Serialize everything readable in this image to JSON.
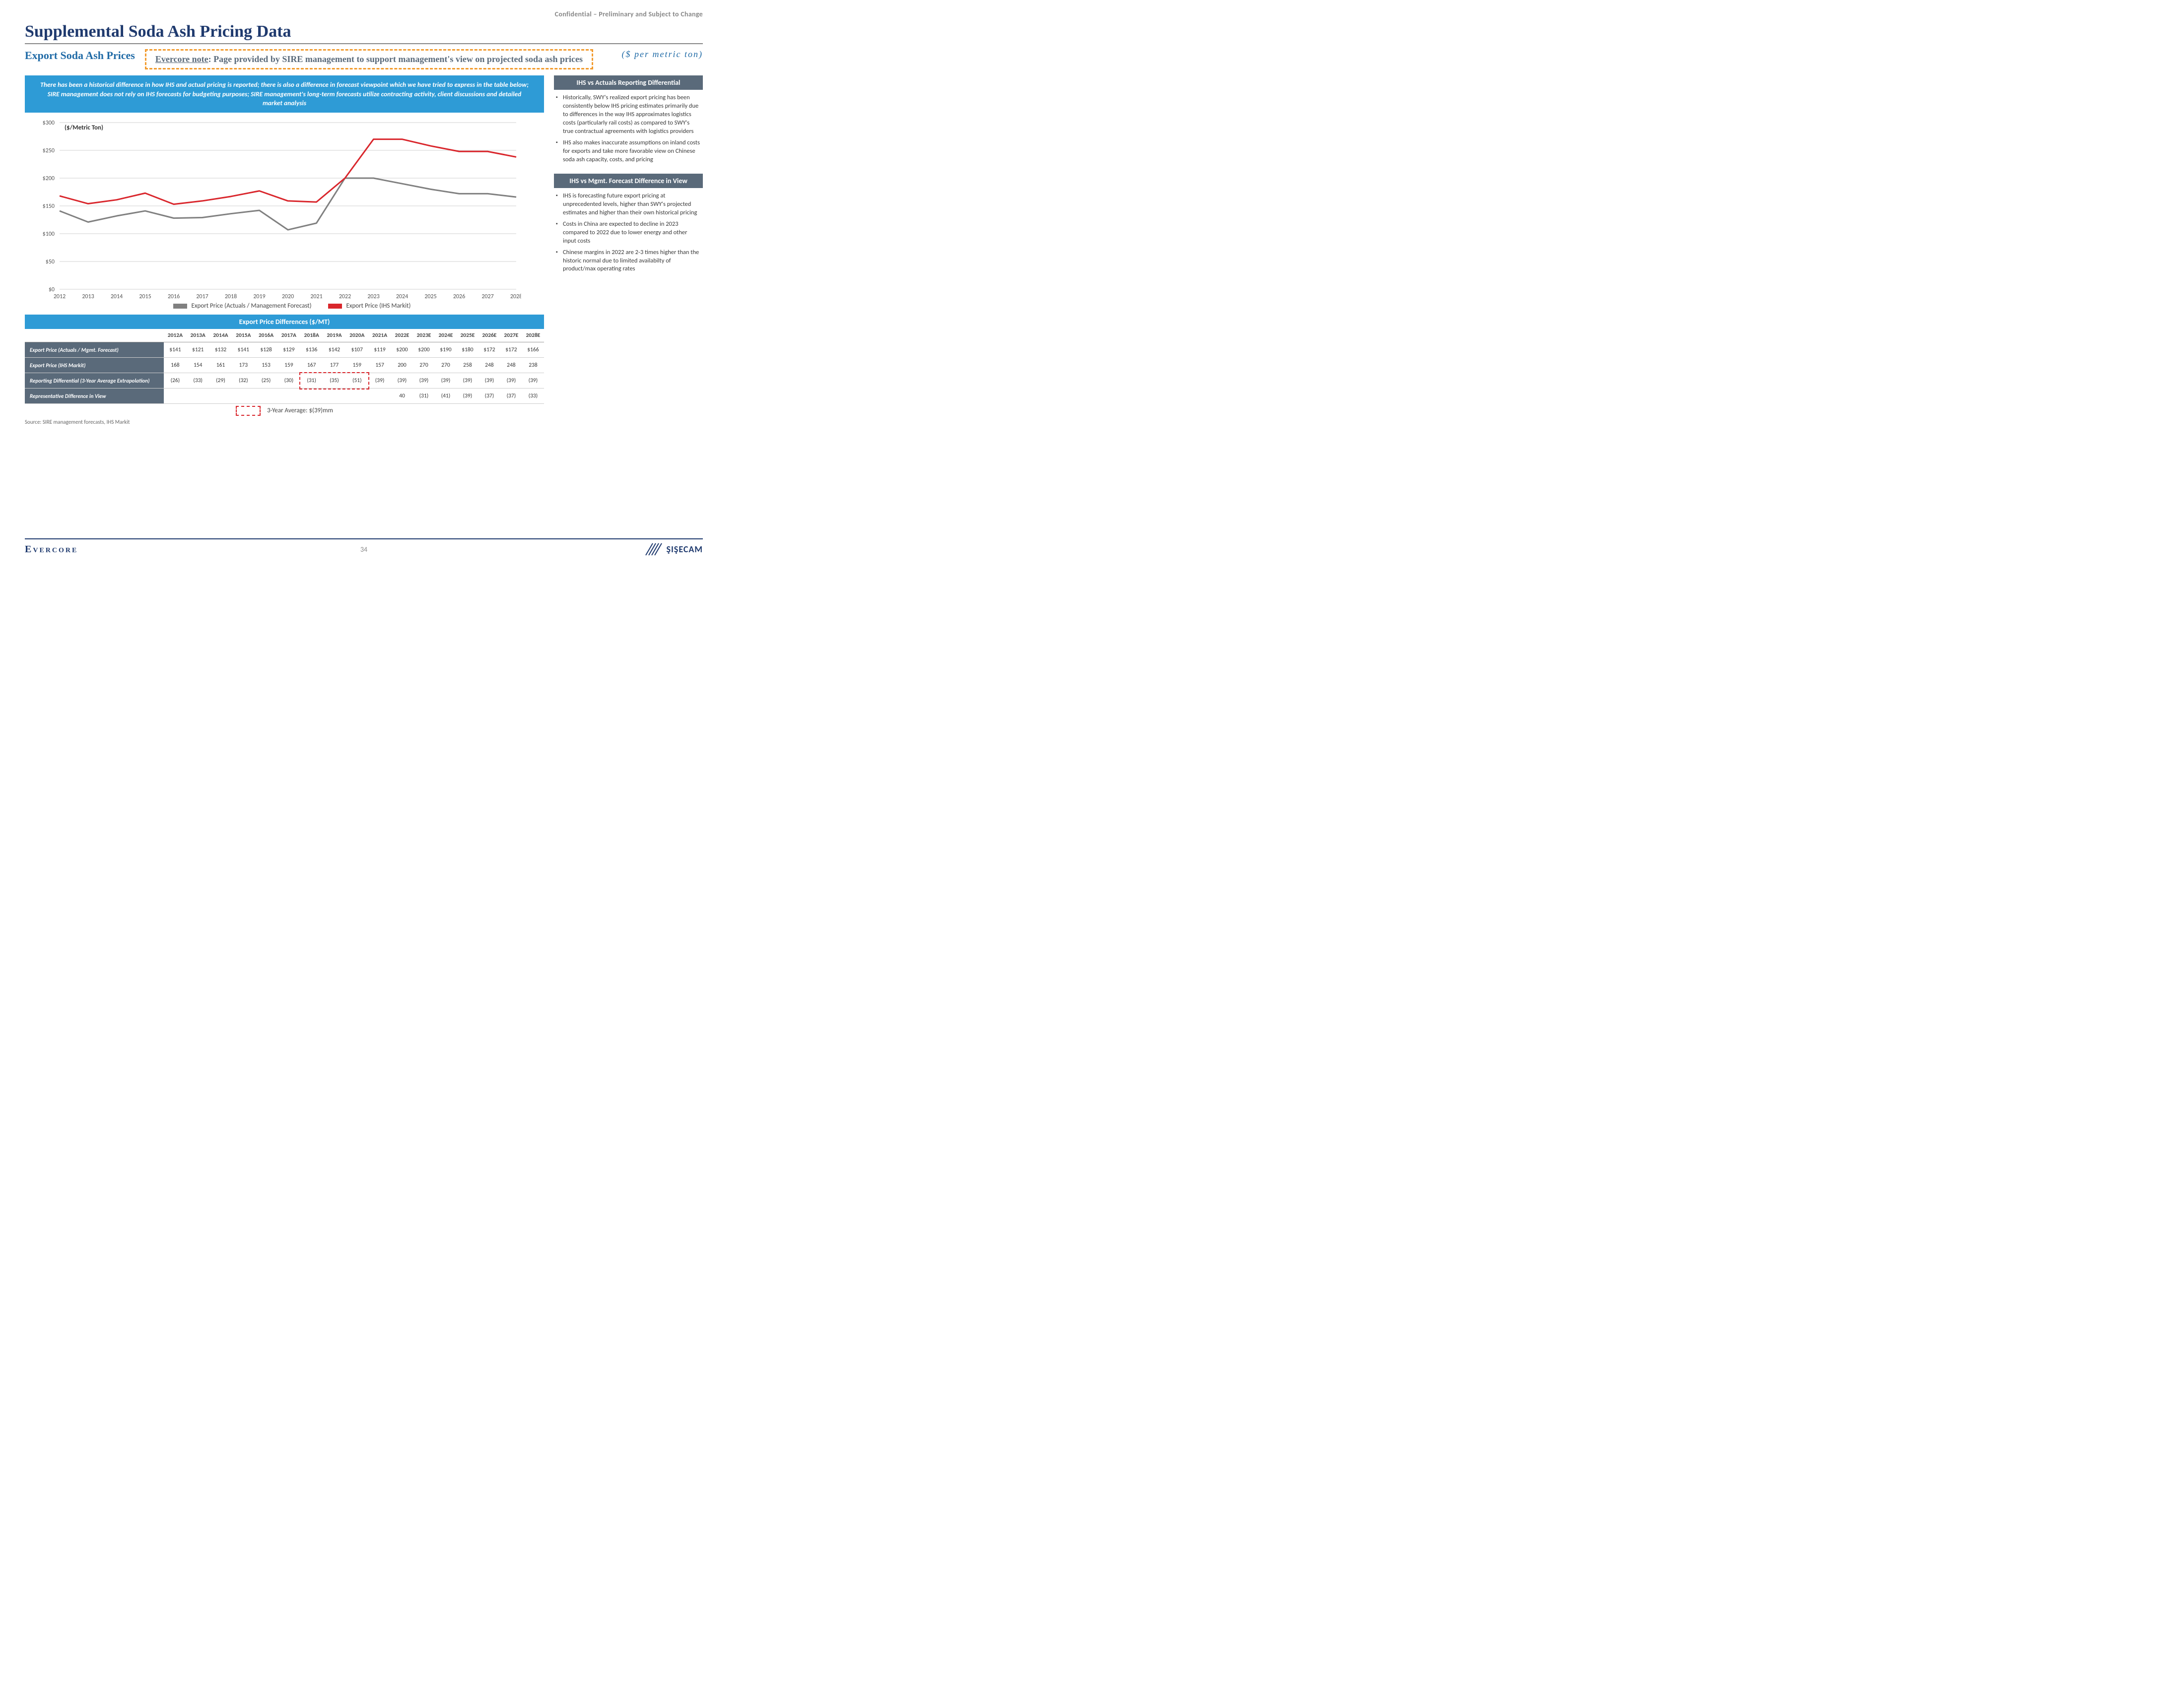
{
  "header": {
    "confidential": "Confidential – Preliminary and Subject to Change",
    "title": "Supplemental Soda Ash Pricing Data",
    "subtitle": "Export Soda Ash Prices",
    "note_lead": "Evercore note",
    "note_rest": ": Page provided by SIRE management to support management's view on projected soda ash prices",
    "unit": "($ per metric ton)"
  },
  "banner": "There has been a historical difference in how IHS and actual pricing is reported; there is also a difference in forecast viewpoint which we have tried to express in the table below; SIRE management does not rely on IHS forecasts for budgeting purposes; SIRE management's long-term forecasts utilize contracting activity, client discussions and detailed market analysis",
  "chart": {
    "type": "line",
    "y_label": "($/Metric Ton)",
    "ylim": [
      0,
      300
    ],
    "ytick_step": 50,
    "yticks": [
      "$0",
      "$50",
      "$100",
      "$150",
      "$200",
      "$250",
      "$300"
    ],
    "x_labels": [
      "2012",
      "2013",
      "2014",
      "2015",
      "2016",
      "2017",
      "2018",
      "2019",
      "2020",
      "2021",
      "2022",
      "2023",
      "2024",
      "2025",
      "2026",
      "2027",
      "2028"
    ],
    "series": [
      {
        "name": "Export Price (Actuals / Management Forecast)",
        "color": "#808080",
        "width": 3,
        "values": [
          141,
          121,
          132,
          141,
          128,
          129,
          136,
          142,
          107,
          119,
          200,
          200,
          190,
          180,
          172,
          172,
          166
        ]
      },
      {
        "name": "Export Price (IHS Markit)",
        "color": "#d9262c",
        "width": 3,
        "values": [
          168,
          154,
          161,
          173,
          153,
          159,
          167,
          177,
          159,
          157,
          200,
          270,
          270,
          258,
          248,
          248,
          238
        ]
      }
    ],
    "grid_color": "#d0d0d0",
    "background_color": "#ffffff",
    "axis_fontsize": 12
  },
  "right_sections": [
    {
      "title": "IHS vs Actuals Reporting Differential",
      "bullets": [
        "Historically, SWY's realized export pricing has been consistently below IHS pricing estimates primarily due to differences in the way IHS approximates logistics costs (particularly rail costs) as compared to SWY's true contractual agreements with logistics providers",
        "IHS also makes inaccurate assumptions on inland costs for exports and take more favorable view on Chinese soda ash capacity, costs, and pricing"
      ]
    },
    {
      "title": "IHS vs Mgmt. Forecast Difference in View",
      "bullets": [
        "IHS is forecasting future export pricing at unprecedented levels, higher than SWY's projected estimates and higher than their own historical pricing",
        "Costs in China are expected to decline in 2023 compared to 2022 due to lower energy and other input costs",
        "Chinese margins in 2022 are 2-3 times higher than the historic normal due to limited availabilty of product/max operating rates"
      ]
    }
  ],
  "table": {
    "title": "Export Price Differences ($/MT)",
    "columns": [
      "2012A",
      "2013A",
      "2014A",
      "2015A",
      "2016A",
      "2017A",
      "2018A",
      "2019A",
      "2020A",
      "2021A",
      "2022E",
      "2023E",
      "2024E",
      "2025E",
      "2026E",
      "2027E",
      "2028E"
    ],
    "rows": [
      {
        "label": "Export Price (Actuals / Mgmt. Forecast)",
        "cells": [
          "$141",
          "$121",
          "$132",
          "$141",
          "$128",
          "$129",
          "$136",
          "$142",
          "$107",
          "$119",
          "$200",
          "$200",
          "$190",
          "$180",
          "$172",
          "$172",
          "$166"
        ]
      },
      {
        "label": "Export Price (IHS Markit)",
        "cells": [
          "168",
          "154",
          "161",
          "173",
          "153",
          "159",
          "167",
          "177",
          "159",
          "157",
          "200",
          "270",
          "270",
          "258",
          "248",
          "248",
          "238"
        ]
      },
      {
        "label": "Reporting Differential (3-Year Average Extrapolation)",
        "cells": [
          "(26)",
          "(33)",
          "(29)",
          "(32)",
          "(25)",
          "(30)",
          "(31)",
          "(35)",
          "(51)",
          "(39)",
          "(39)",
          "(39)",
          "(39)",
          "(39)",
          "(39)",
          "(39)",
          "(39)"
        ]
      },
      {
        "label": "Representative Difference in View",
        "cells": [
          "",
          "",
          "",
          "",
          "",
          "",
          "",
          "",
          "",
          "",
          "40",
          "(31)",
          "(41)",
          "(39)",
          "(37)",
          "(37)",
          "(33)"
        ]
      }
    ],
    "highlight_box": {
      "row_index": 2,
      "col_start": 6,
      "col_end": 8
    },
    "avg_note": "3-Year Average: $(39)mm"
  },
  "source": "Source: SIRE management forecasts, IHS Markit",
  "footer": {
    "logo_left": "Evercore",
    "page": "34",
    "logo_right": "ŞIŞECAM"
  },
  "colors": {
    "navy": "#1f3a6e",
    "blue_header": "#2e9bd6",
    "grey_bar": "#5a6a7a",
    "red": "#d9262c",
    "orange": "#f29b2e",
    "grey_line": "#808080"
  }
}
